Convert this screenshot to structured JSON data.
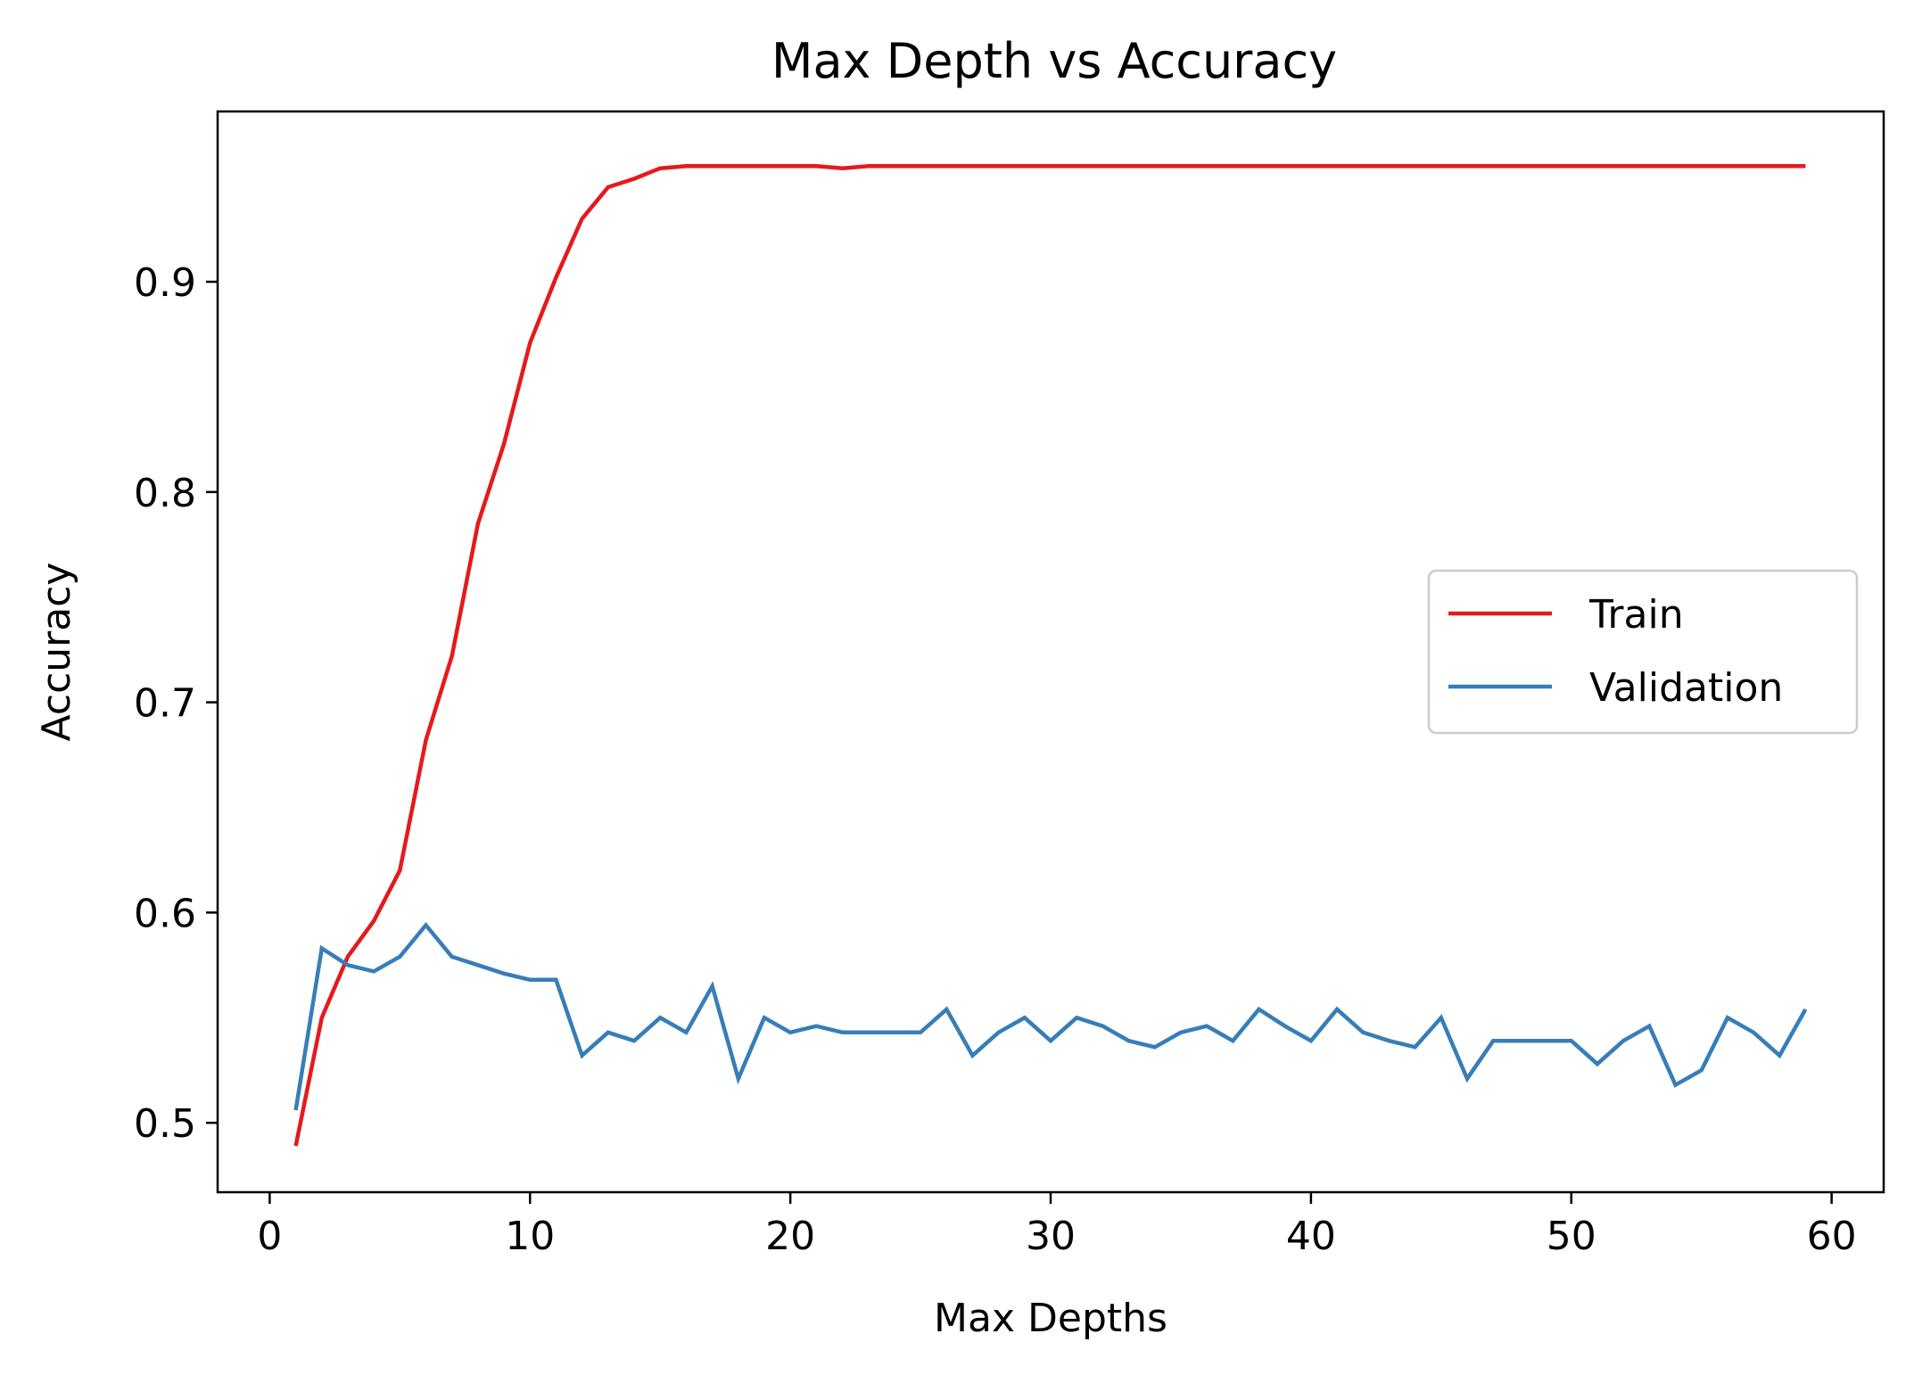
{
  "chart_data": {
    "type": "line",
    "title": "Max Depth vs Accuracy",
    "xlabel": "Max Depths",
    "ylabel": "Accuracy",
    "xlim": [
      -2,
      62
    ],
    "ylim": [
      0.467,
      0.981
    ],
    "xticks": [
      0,
      10,
      20,
      30,
      40,
      50,
      60
    ],
    "yticks": [
      0.5,
      0.6,
      0.7,
      0.8,
      0.9
    ],
    "yticks_labels": [
      "0.5",
      "0.6",
      "0.7",
      "0.8",
      "0.9"
    ],
    "xticks_labels": [
      "0",
      "10",
      "20",
      "30",
      "40",
      "50",
      "60"
    ],
    "grid": false,
    "legend_position": "center-right",
    "x": [
      1,
      2,
      3,
      4,
      5,
      6,
      7,
      8,
      9,
      10,
      11,
      12,
      13,
      14,
      15,
      16,
      17,
      18,
      19,
      20,
      21,
      22,
      23,
      24,
      25,
      26,
      27,
      28,
      29,
      30,
      31,
      32,
      33,
      34,
      35,
      36,
      37,
      38,
      39,
      40,
      41,
      42,
      43,
      44,
      45,
      46,
      47,
      48,
      49,
      50,
      51,
      52,
      53,
      54,
      55,
      56,
      57,
      58,
      59
    ],
    "series": [
      {
        "name": "Train",
        "color": "#e41a1c",
        "values": [
          0.489,
          0.55,
          0.579,
          0.596,
          0.62,
          0.682,
          0.722,
          0.785,
          0.823,
          0.871,
          0.902,
          0.93,
          0.945,
          0.949,
          0.954,
          0.955,
          0.955,
          0.955,
          0.955,
          0.955,
          0.955,
          0.954,
          0.955,
          0.955,
          0.955,
          0.955,
          0.955,
          0.955,
          0.955,
          0.955,
          0.955,
          0.955,
          0.955,
          0.955,
          0.955,
          0.955,
          0.955,
          0.955,
          0.955,
          0.955,
          0.955,
          0.955,
          0.955,
          0.955,
          0.955,
          0.955,
          0.955,
          0.955,
          0.955,
          0.955,
          0.955,
          0.955,
          0.955,
          0.955,
          0.955,
          0.955,
          0.955,
          0.955,
          0.955
        ]
      },
      {
        "name": "Validation",
        "color": "#377eb8",
        "values": [
          0.506,
          0.583,
          0.575,
          0.572,
          0.579,
          0.594,
          0.579,
          0.575,
          0.571,
          0.568,
          0.568,
          0.532,
          0.543,
          0.539,
          0.55,
          0.543,
          0.565,
          0.521,
          0.55,
          0.543,
          0.546,
          0.543,
          0.543,
          0.543,
          0.543,
          0.554,
          0.532,
          0.543,
          0.55,
          0.539,
          0.55,
          0.546,
          0.539,
          0.536,
          0.543,
          0.546,
          0.539,
          0.554,
          0.546,
          0.539,
          0.554,
          0.543,
          0.539,
          0.536,
          0.55,
          0.521,
          0.539,
          0.539,
          0.539,
          0.539,
          0.528,
          0.539,
          0.546,
          0.518,
          0.525,
          0.55,
          0.543,
          0.532,
          0.554
        ]
      }
    ]
  }
}
